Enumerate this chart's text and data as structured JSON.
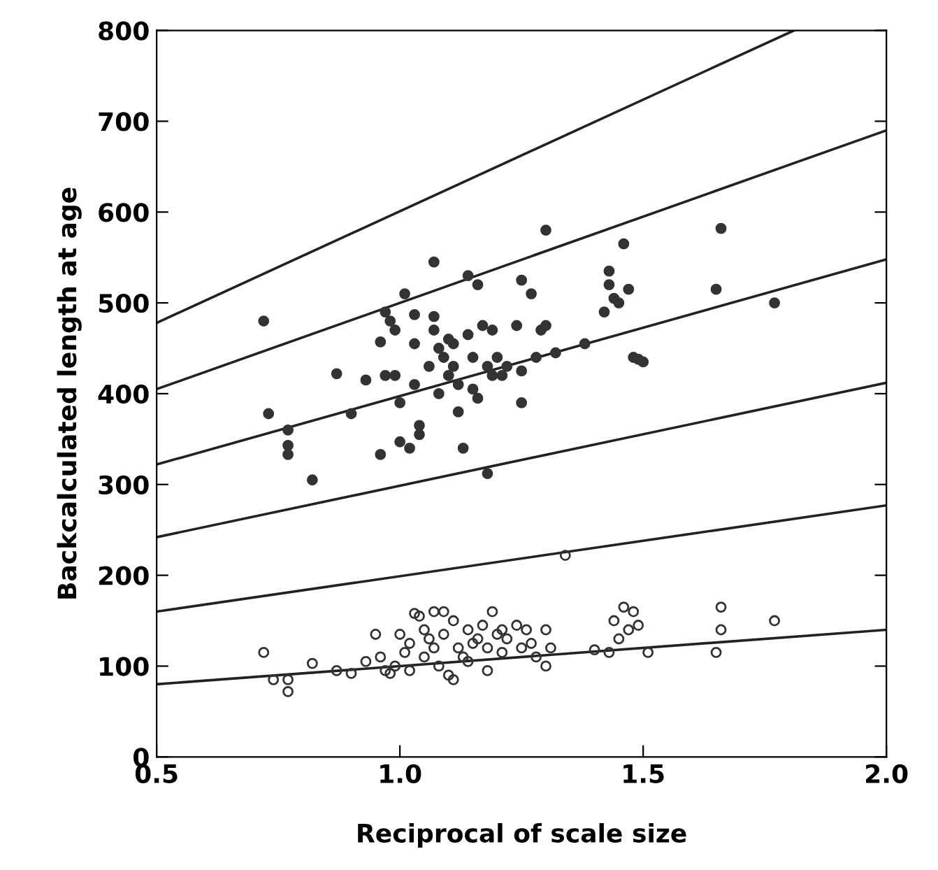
{
  "chart_data": {
    "type": "scatter",
    "xlabel": "Reciprocal of scale size",
    "ylabel": "Backcalculated length at age",
    "xlim": [
      0.5,
      2.0
    ],
    "ylim": [
      0,
      800
    ],
    "xticks": [
      {
        "value": 0.5,
        "label": "0.5"
      },
      {
        "value": 1.0,
        "label": "1.0"
      },
      {
        "value": 1.5,
        "label": "1.5"
      },
      {
        "value": 2.0,
        "label": "2.0"
      }
    ],
    "yticks": [
      0,
      100,
      200,
      300,
      400,
      500,
      600,
      700,
      800
    ],
    "grid": false,
    "legend": false,
    "series": [
      {
        "color": "#333333",
        "marker": "circle",
        "x": [
          0.72,
          0.73,
          0.77,
          0.77,
          0.77,
          0.82,
          0.87,
          0.9,
          0.93,
          0.96,
          0.97,
          0.97,
          0.96,
          0.98,
          0.99,
          0.99,
          1.0,
          1.0,
          1.01,
          1.02,
          1.03,
          1.03,
          1.03,
          1.04,
          1.04,
          1.06,
          1.07,
          1.07,
          1.07,
          1.08,
          1.08,
          1.09,
          1.1,
          1.1,
          1.11,
          1.11,
          1.12,
          1.12,
          1.13,
          1.14,
          1.14,
          1.15,
          1.15,
          1.16,
          1.16,
          1.17,
          1.18,
          1.18,
          1.19,
          1.19,
          1.2,
          1.21,
          1.22,
          1.24,
          1.25,
          1.25,
          1.25,
          1.27,
          1.28,
          1.29,
          1.3,
          1.3,
          1.32,
          1.38,
          1.42,
          1.43,
          1.43,
          1.44,
          1.45,
          1.46,
          1.47,
          1.48,
          1.49,
          1.5,
          1.65,
          1.66,
          1.77
        ],
        "values": [
          480,
          378,
          360,
          343,
          333,
          305,
          422,
          378,
          415,
          457,
          490,
          420,
          333,
          480,
          470,
          420,
          390,
          347,
          510,
          340,
          487,
          455,
          410,
          365,
          355,
          430,
          545,
          485,
          470,
          450,
          400,
          440,
          460,
          420,
          455,
          430,
          410,
          380,
          340,
          530,
          465,
          440,
          405,
          520,
          395,
          475,
          430,
          312,
          470,
          420,
          440,
          420,
          430,
          475,
          525,
          390,
          425,
          510,
          440,
          470,
          580,
          475,
          445,
          455,
          490,
          535,
          520,
          505,
          500,
          565,
          515,
          440,
          438,
          435,
          515,
          582,
          500
        ]
      },
      {
        "color": "#333333",
        "marker": "circle",
        "x": [
          0.72,
          0.74,
          0.77,
          0.77,
          0.82,
          0.87,
          0.9,
          0.93,
          0.95,
          0.96,
          0.97,
          0.98,
          0.99,
          1.0,
          1.01,
          1.02,
          1.02,
          1.03,
          1.04,
          1.05,
          1.05,
          1.06,
          1.07,
          1.07,
          1.08,
          1.09,
          1.09,
          1.1,
          1.11,
          1.11,
          1.12,
          1.13,
          1.14,
          1.14,
          1.15,
          1.16,
          1.17,
          1.18,
          1.18,
          1.19,
          1.2,
          1.21,
          1.21,
          1.22,
          1.24,
          1.25,
          1.26,
          1.27,
          1.28,
          1.3,
          1.3,
          1.31,
          1.34,
          1.4,
          1.43,
          1.44,
          1.45,
          1.46,
          1.47,
          1.48,
          1.49,
          1.51,
          1.65,
          1.66,
          1.66,
          1.77
        ],
        "values": [
          115,
          85,
          85,
          72,
          103,
          95,
          92,
          105,
          135,
          110,
          95,
          92,
          100,
          135,
          115,
          125,
          95,
          158,
          155,
          140,
          110,
          130,
          160,
          120,
          100,
          135,
          160,
          90,
          85,
          150,
          120,
          110,
          105,
          140,
          125,
          130,
          145,
          120,
          95,
          160,
          135,
          140,
          115,
          130,
          145,
          120,
          140,
          125,
          110,
          140,
          100,
          120,
          222,
          118,
          115,
          150,
          130,
          165,
          140,
          160,
          145,
          115,
          115,
          165,
          140,
          150
        ]
      },
      {
        "type": "line",
        "color": "#222222",
        "x": [
          0.5,
          1.81
        ],
        "values": [
          478,
          800
        ]
      },
      {
        "type": "line",
        "color": "#222222",
        "x": [
          0.5,
          2.0
        ],
        "values": [
          405,
          690
        ]
      },
      {
        "type": "line",
        "color": "#222222",
        "x": [
          0.5,
          2.0
        ],
        "values": [
          322,
          548
        ]
      },
      {
        "type": "line",
        "color": "#222222",
        "x": [
          0.5,
          2.0
        ],
        "values": [
          242,
          412
        ]
      },
      {
        "type": "line",
        "color": "#222222",
        "x": [
          0.5,
          2.0
        ],
        "values": [
          160,
          277
        ]
      },
      {
        "type": "line",
        "color": "#222222",
        "x": [
          0.5,
          2.0
        ],
        "values": [
          80,
          140
        ]
      }
    ]
  }
}
